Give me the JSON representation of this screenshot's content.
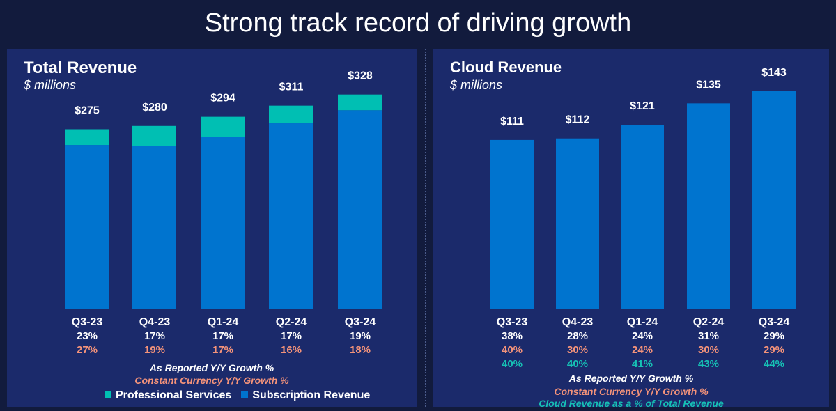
{
  "slide_title": "Strong track record of driving growth",
  "colors": {
    "subscription": "#0074cf",
    "professional": "#00bfb3",
    "reported": "#ffffff",
    "constant": "#f4937a",
    "cloud_share": "#16c1b5"
  },
  "chart_data": [
    {
      "type": "bar",
      "stacked": true,
      "title": "Total Revenue",
      "subtitle": "$ millions",
      "categories": [
        "Q3-23",
        "Q4-23",
        "Q1-24",
        "Q2-24",
        "Q3-24"
      ],
      "totals_labels": [
        "$275",
        "$280",
        "$294",
        "$311",
        "$328"
      ],
      "totals": [
        275,
        280,
        294,
        311,
        328
      ],
      "series": [
        {
          "name": "Subscription Revenue",
          "values": [
            251,
            250,
            263,
            284,
            304
          ]
        },
        {
          "name": "Professional Services",
          "values": [
            24,
            30,
            31,
            27,
            24
          ]
        }
      ],
      "rows": [
        {
          "name": "As Reported Y/Y Growth %",
          "values": [
            "23%",
            "17%",
            "17%",
            "17%",
            "19%"
          ]
        },
        {
          "name": "Constant Currency Y/Y Growth %",
          "values": [
            "27%",
            "19%",
            "17%",
            "16%",
            "18%"
          ]
        }
      ],
      "legend": [
        "Professional Services",
        "Subscription Revenue"
      ]
    },
    {
      "type": "bar",
      "title": "Cloud Revenue",
      "subtitle": "$ millions",
      "categories": [
        "Q3-23",
        "Q4-23",
        "Q1-24",
        "Q2-24",
        "Q3-24"
      ],
      "values_labels": [
        "$111",
        "$112",
        "$121",
        "$135",
        "$143"
      ],
      "values": [
        111,
        112,
        121,
        135,
        143
      ],
      "rows": [
        {
          "name": "As Reported Y/Y Growth %",
          "values": [
            "38%",
            "28%",
            "24%",
            "31%",
            "29%"
          ]
        },
        {
          "name": "Constant Currency Y/Y Growth %",
          "values": [
            "40%",
            "30%",
            "24%",
            "30%",
            "29%"
          ]
        },
        {
          "name": "Cloud Revenue as a % of Total Revenue",
          "values": [
            "40%",
            "40%",
            "41%",
            "43%",
            "44%"
          ]
        }
      ]
    }
  ]
}
